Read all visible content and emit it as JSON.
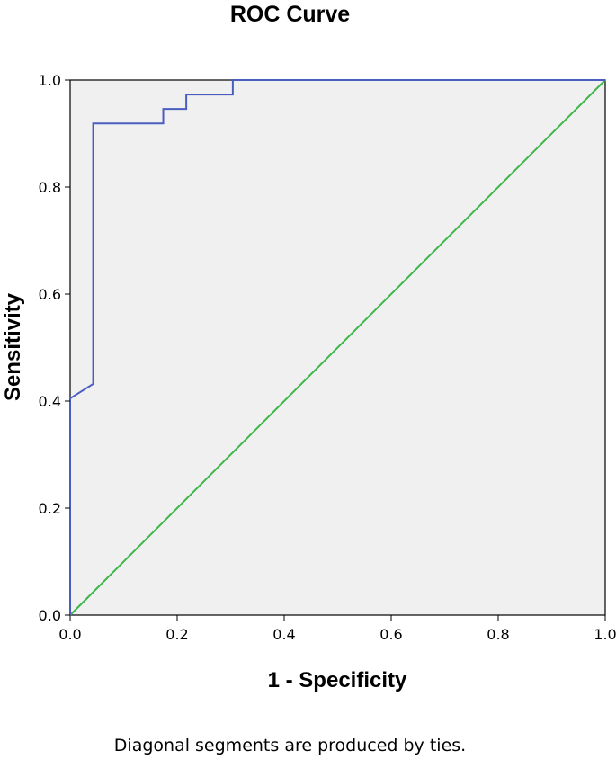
{
  "chart_data": {
    "type": "line",
    "title": "ROC Curve",
    "xlabel": "1 - Specificity",
    "ylabel": "Sensitivity",
    "footnote": "Diagonal segments are produced by ties.",
    "xlim": [
      0,
      1
    ],
    "ylim": [
      0,
      1
    ],
    "xticks": [
      "0.0",
      "0.2",
      "0.4",
      "0.6",
      "0.8",
      "1.0"
    ],
    "yticks": [
      "0.0",
      "0.2",
      "0.4",
      "0.6",
      "0.8",
      "1.0"
    ],
    "grid": false,
    "series": [
      {
        "color": "#4a5ec0",
        "x": [
          0,
          0,
          0.043,
          0.043,
          0.174,
          0.174,
          0.217,
          0.217,
          0.304,
          0.304,
          1.0
        ],
        "y": [
          0,
          0.405,
          0.432,
          0.919,
          0.919,
          0.946,
          0.946,
          0.973,
          0.973,
          1.0,
          1.0
        ]
      },
      {
        "color": "#3cb54a",
        "x": [
          0,
          1
        ],
        "y": [
          0,
          1
        ]
      }
    ],
    "plot_background": "#f0f0f0"
  }
}
